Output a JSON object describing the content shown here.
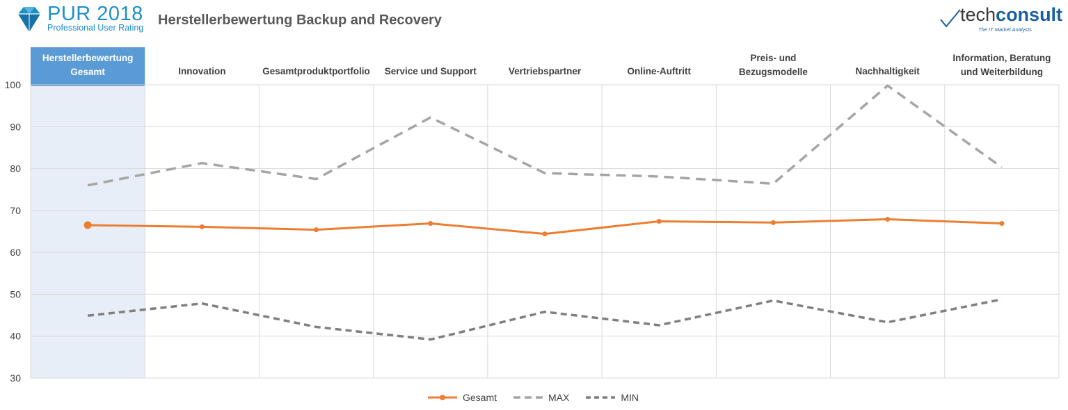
{
  "header": {
    "logo_main": "PUR 2018",
    "logo_sub": "Professional User Rating",
    "title": "Herstellerbewertung Backup and Recovery",
    "brand_prefix": "tech",
    "brand_suffix": "consult",
    "brand_tagline": "The IT Market Analysts"
  },
  "colors": {
    "gesamt": "#ed7d31",
    "max": "#a5a5a5",
    "min": "#7f7f7f",
    "highlight_header": "#5b9bd5",
    "highlight_col": "#e8eef8",
    "logo_blue": "#1f8fc9"
  },
  "chart_data": {
    "type": "line",
    "categories": [
      [
        "Herstellerbewertung",
        "Gesamt"
      ],
      [
        "Innovation"
      ],
      [
        "Gesamtproduktportfolio"
      ],
      [
        "Service und Support"
      ],
      [
        "Vertriebspartner"
      ],
      [
        "Online-Auftritt"
      ],
      [
        "Preis- und",
        "Bezugsmodelle"
      ],
      [
        "Nachhaltigkeit"
      ],
      [
        "Information, Beratung",
        "und Weiterbildung"
      ]
    ],
    "highlighted_category": 0,
    "ylim": [
      30,
      100
    ],
    "yticks": [
      30,
      40,
      50,
      60,
      70,
      80,
      90,
      100
    ],
    "grid": true,
    "series": [
      {
        "name": "Gesamt",
        "style": "solid",
        "values": [
          66.5,
          66.1,
          65.4,
          66.9,
          64.4,
          67.4,
          67.1,
          67.9,
          66.9
        ]
      },
      {
        "name": "MAX",
        "style": "dashed",
        "values": [
          76.0,
          81.3,
          77.5,
          92.2,
          78.9,
          78.1,
          76.4,
          99.8,
          80.3
        ]
      },
      {
        "name": "MIN",
        "style": "dashed",
        "values": [
          44.9,
          47.8,
          42.2,
          39.2,
          45.8,
          42.6,
          48.5,
          43.3,
          48.8
        ]
      }
    ],
    "legend_position": "bottom"
  }
}
